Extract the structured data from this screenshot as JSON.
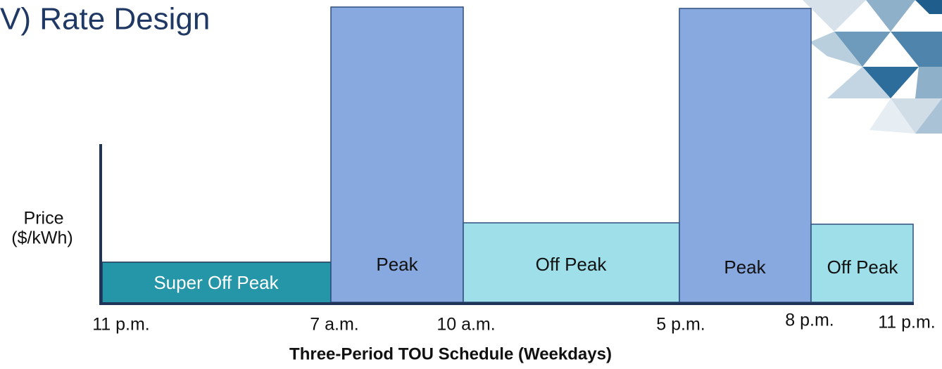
{
  "title": "V) Rate Design",
  "y_axis_label": [
    "Price",
    "($/kWh)"
  ],
  "periods": [
    "Super Off Peak",
    "Peak",
    "Off Peak",
    "Peak",
    "Off Peak"
  ],
  "time_labels": [
    "11 p.m.",
    "7 a.m.",
    "10 a.m.",
    "5 p.m.",
    "8 p.m.",
    "11 p.m."
  ],
  "x_axis_title": "Three-Period TOU Schedule (Weekdays)"
}
